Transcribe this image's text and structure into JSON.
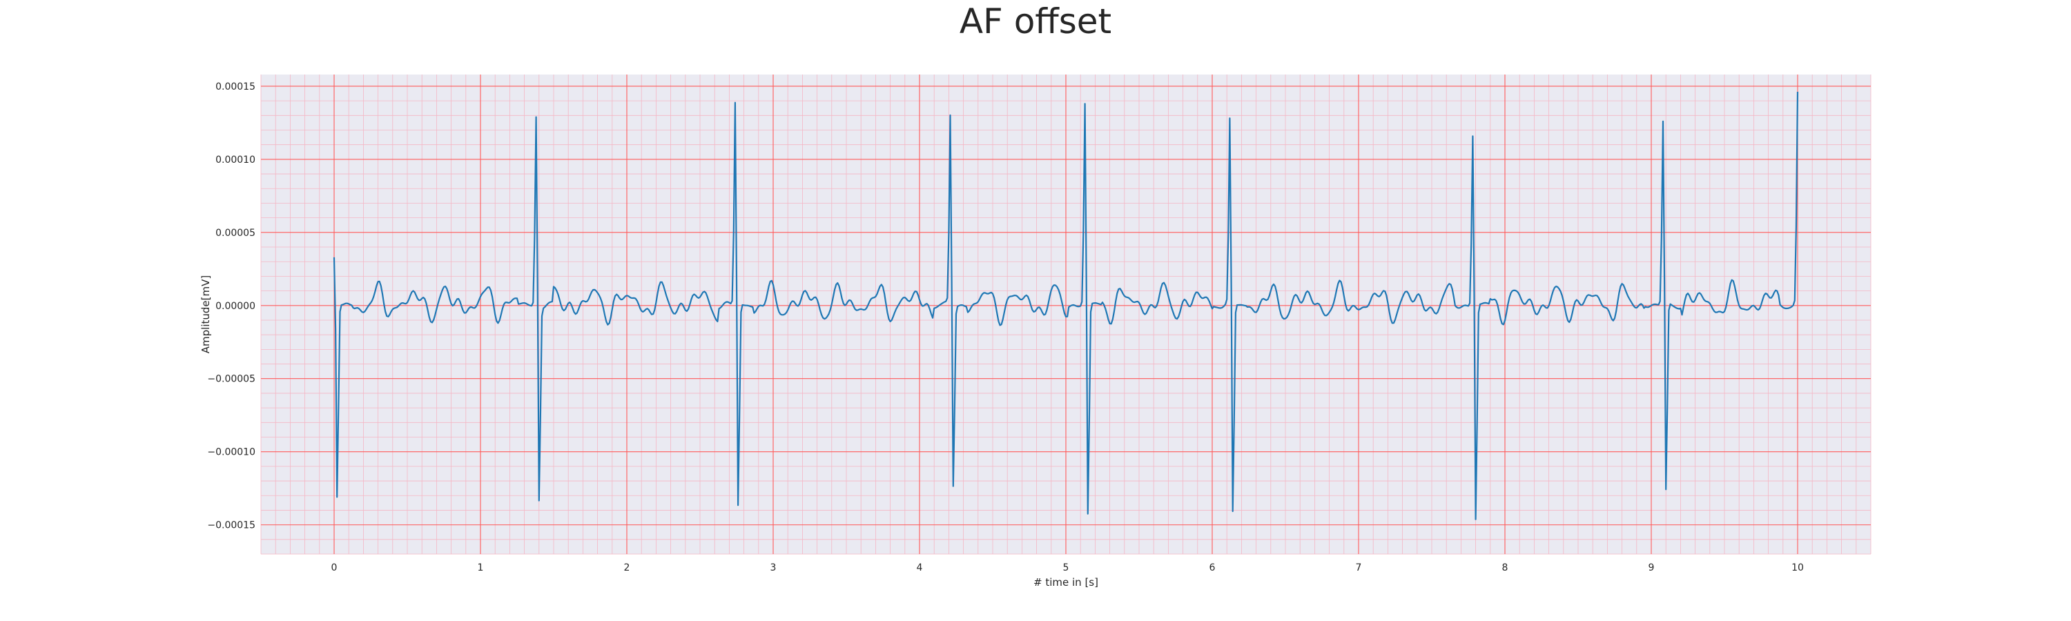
{
  "chart_data": {
    "type": "line",
    "title": "AF offset",
    "xlabel": "# time in [s]",
    "ylabel": "Amplitude[mV]",
    "xlim": [
      -0.5,
      10.5
    ],
    "ylim": [
      -0.00017,
      0.000158
    ],
    "x_ticks": [
      0,
      1,
      2,
      3,
      4,
      5,
      6,
      7,
      8,
      9,
      10
    ],
    "x_tick_labels": [
      "0",
      "1",
      "2",
      "3",
      "4",
      "5",
      "6",
      "7",
      "8",
      "9",
      "10"
    ],
    "y_ticks": [
      0.00015,
      0.0001,
      5e-05,
      0.0,
      -5e-05,
      -0.0001,
      -0.00015
    ],
    "y_tick_labels": [
      "0.00015",
      "0.00010",
      "0.00005",
      "0.00000",
      "−0.00005",
      "−0.00010",
      "−0.00015"
    ],
    "major_grid": true,
    "minor_grid": true,
    "sample_rate_hz": 100,
    "series": [
      {
        "color": "#1f77b4",
        "beats": [
          {
            "t": 0.0,
            "peak": 3.3e-05,
            "trough": -0.000131
          },
          {
            "t": 1.38,
            "peak": 0.00013,
            "trough": -0.00014
          },
          {
            "t": 2.74,
            "peak": 0.000139,
            "trough": -0.000146
          },
          {
            "t": 4.21,
            "peak": 0.000129,
            "trough": -0.000131
          },
          {
            "t": 5.13,
            "peak": 0.000138,
            "trough": -0.000152
          },
          {
            "t": 6.12,
            "peak": 0.000126,
            "trough": -0.000151
          },
          {
            "t": 7.78,
            "peak": 0.000117,
            "trough": -0.000155
          },
          {
            "t": 9.08,
            "peak": 0.000125,
            "trough": -0.000136
          },
          {
            "t": 10.0,
            "peak": 0.000144,
            "trough": -1.7e-05
          }
        ]
      }
    ]
  },
  "colors": {
    "plot_background": "#eaeaf2",
    "major_grid": "#ff5a5a",
    "minor_grid": "#f5b6c4",
    "line": "#1f77b4"
  }
}
